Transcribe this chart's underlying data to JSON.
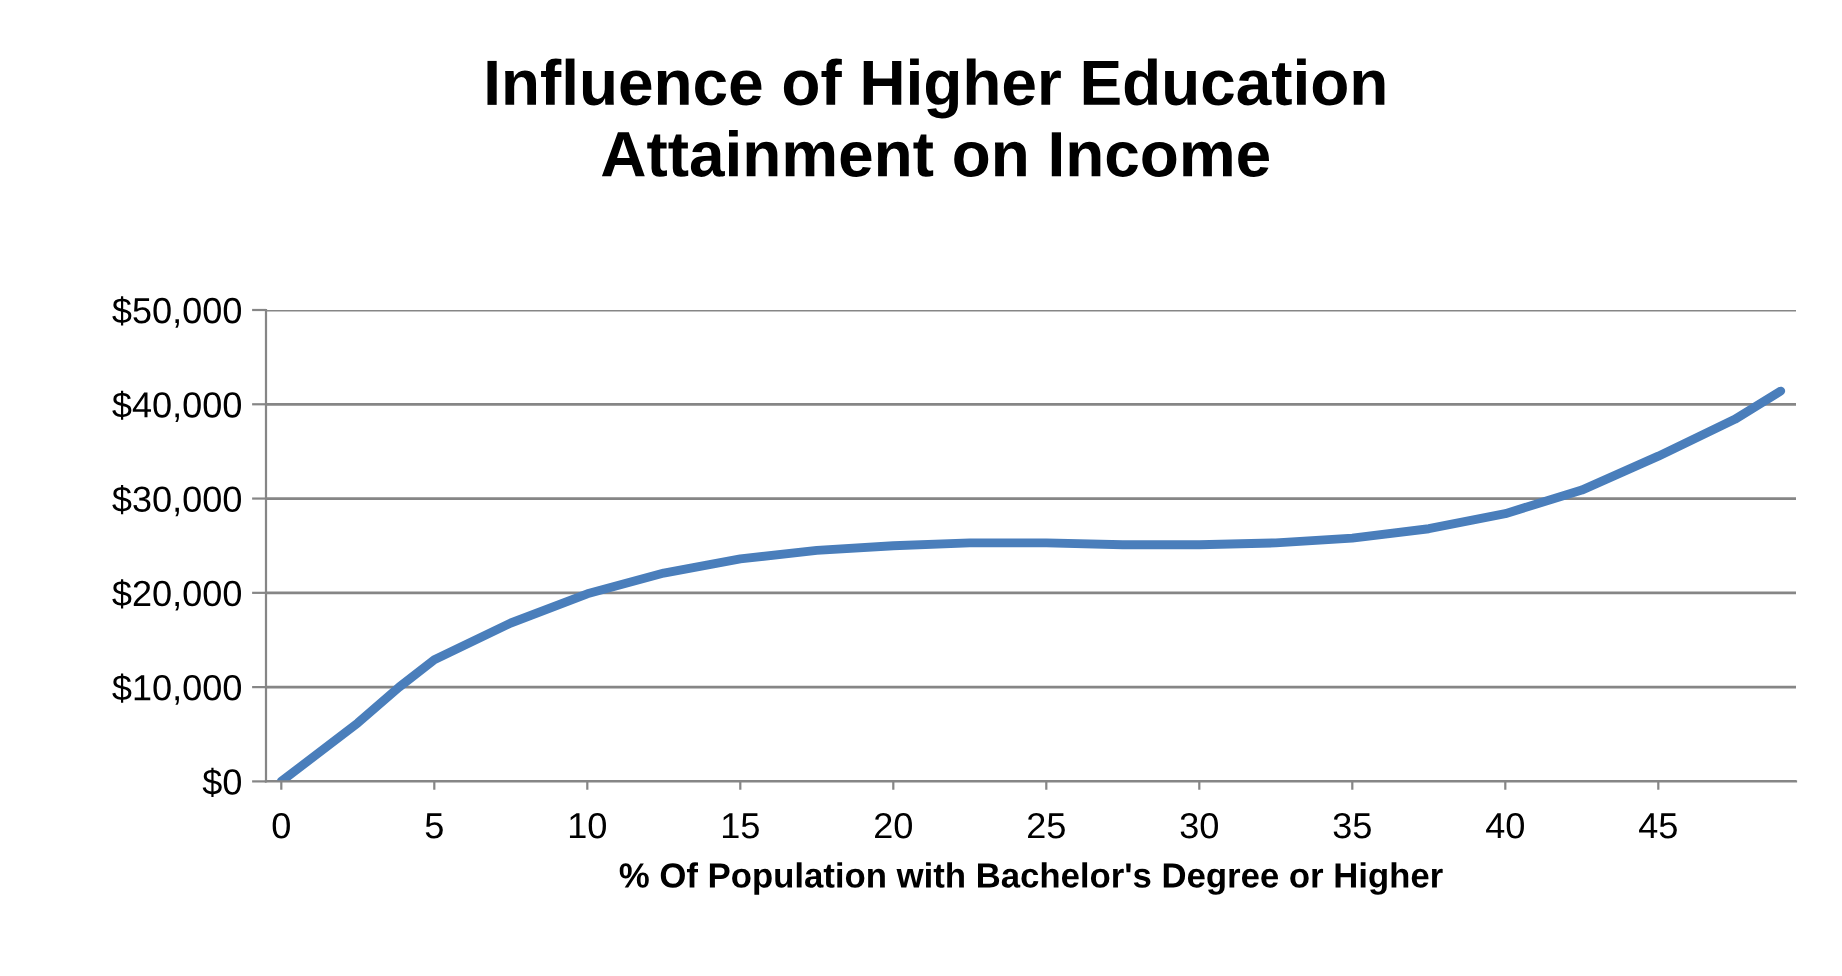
{
  "chart_data": {
    "type": "line",
    "title": "Influence of Higher Education\nAttainment on Income",
    "xlabel": "% Of Population with Bachelor's Degree or Higher",
    "x": [
      0,
      2.5,
      3.85,
      5,
      7.5,
      10,
      12.5,
      15,
      17.5,
      20,
      22.5,
      25,
      27.5,
      30,
      32.5,
      35,
      37.5,
      40,
      42.5,
      45,
      47.5,
      49
    ],
    "series": [
      {
        "color": "#4a7ebb",
        "values": [
          0,
          6200,
          10000,
          12900,
          16800,
          19900,
          22100,
          23600,
          24500,
          25000,
          25300,
          25300,
          25100,
          25100,
          25300,
          25800,
          26800,
          28400,
          30900,
          34500,
          38400,
          41400
        ]
      }
    ],
    "xlim": [
      -0.5,
      49.5
    ],
    "xticks": [
      0,
      5,
      10,
      15,
      20,
      25,
      30,
      35,
      40,
      45
    ],
    "ylim": [
      0,
      50000
    ],
    "yticks": [
      {
        "value": 0,
        "label": "$0"
      },
      {
        "value": 10000,
        "label": "$10,000"
      },
      {
        "value": 20000,
        "label": "$20,000"
      },
      {
        "value": 30000,
        "label": "$30,000"
      },
      {
        "value": 40000,
        "label": "$40,000"
      },
      {
        "value": 50000,
        "label": "$50,000"
      }
    ],
    "grid": "y",
    "legend": false,
    "marker": "none",
    "line_style": "solid"
  }
}
